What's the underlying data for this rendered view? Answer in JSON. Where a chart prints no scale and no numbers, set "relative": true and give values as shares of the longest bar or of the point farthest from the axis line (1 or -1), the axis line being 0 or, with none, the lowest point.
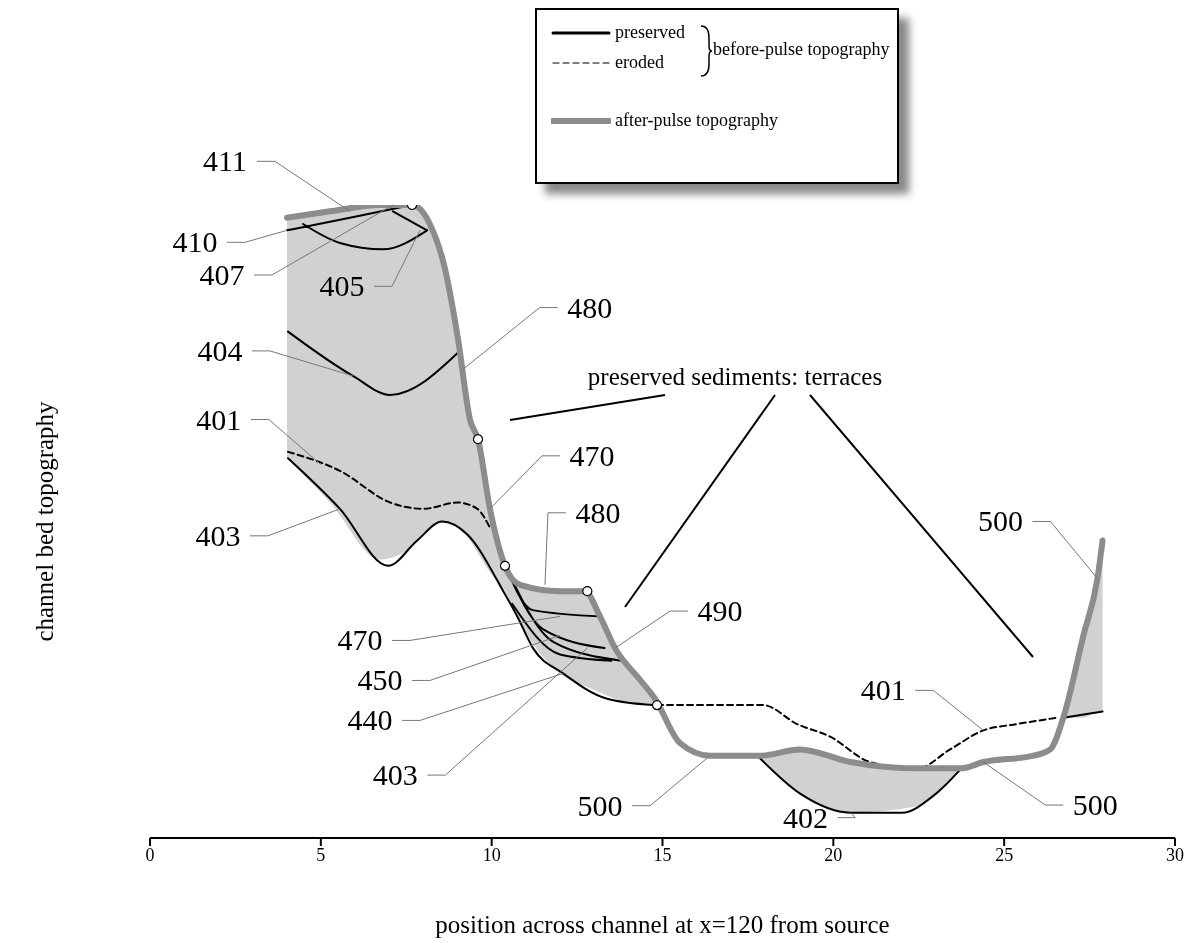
{
  "chart_data": {
    "type": "line",
    "relative": true,
    "xlabel": "position across channel at x=120 from source",
    "ylabel": "channel bed topography",
    "xlim": [
      0,
      30
    ],
    "xticks": [
      0,
      5,
      10,
      15,
      20,
      25,
      30
    ],
    "legend": "top right",
    "series": [
      {
        "name": "preserved",
        "color": "#000000",
        "line_style": "solid",
        "x": [
          4.01,
          5.85,
          7.67,
          null,
          4.48,
          5.56,
          6.82,
          8.11,
          null,
          7.11,
          8.11,
          null,
          4.04,
          5.94,
          7.03,
          9.08,
          null,
          4.04,
          5.56,
          6.97,
          7.82,
          8.55,
          9.28,
          10.34,
          10.75,
          11.21,
          12.09,
          13.38,
          14.73,
          null,
          10.4,
          11.2,
          13.2,
          null,
          10.4,
          11.5,
          13.3,
          null,
          10.4,
          11.8,
          13.8,
          null,
          10.6,
          12.0,
          13.5,
          null,
          17.78,
          19.03,
          20.5,
          22.0,
          23.0,
          23.75,
          null,
          26.73,
          27.88
        ],
        "values": [
          0.96,
          0.98,
          1.0,
          null,
          0.97,
          0.94,
          0.93,
          0.96,
          null,
          0.99,
          0.96,
          null,
          0.8,
          0.73,
          0.7,
          0.77,
          null,
          0.6,
          0.52,
          0.43,
          0.47,
          0.5,
          0.48,
          0.39,
          0.35,
          0.3,
          0.26,
          0.22,
          0.21,
          null,
          0.43,
          0.36,
          0.35,
          null,
          0.43,
          0.33,
          0.3,
          null,
          0.43,
          0.31,
          0.28,
          null,
          0.37,
          0.29,
          0.28,
          null,
          0.13,
          0.07,
          0.04,
          0.04,
          0.07,
          0.11,
          null,
          0.19,
          0.2
        ]
      },
      {
        "name": "eroded",
        "color": "#000000",
        "line_style": "dashed",
        "x": [
          4.04,
          5.56,
          7.03,
          8.0,
          9.0,
          9.58,
          9.95,
          null,
          14.84,
          17.94,
          18.94,
          19.91,
          21.08,
          22.46,
          23.42,
          24.39,
          25.38,
          26.55
        ],
        "values": [
          0.61,
          0.58,
          0.53,
          0.52,
          0.53,
          0.52,
          0.49,
          null,
          0.21,
          0.21,
          0.18,
          0.16,
          0.12,
          0.11,
          0.14,
          0.17,
          0.18,
          0.19
        ]
      },
      {
        "name": "after-pulse topography",
        "color": "#8c8c8c",
        "line_style": "solid",
        "x": [
          4.01,
          5.27,
          6.73,
          7.67,
          8.19,
          8.63,
          9.01,
          9.37,
          9.6,
          9.95,
          10.39,
          10.83,
          12.0,
          12.73,
          13.17,
          13.61,
          14.34,
          14.78,
          15.51,
          16.39,
          17.85,
          19.02,
          20.5,
          22.46,
          23.75,
          24.39,
          25.86,
          26.35,
          26.73,
          27.32,
          27.73,
          27.88
        ],
        "values": [
          0.98,
          0.99,
          1.0,
          1.0,
          0.97,
          0.9,
          0.79,
          0.66,
          0.63,
          0.52,
          0.43,
          0.4,
          0.39,
          0.39,
          0.35,
          0.3,
          0.25,
          0.22,
          0.15,
          0.13,
          0.13,
          0.14,
          0.12,
          0.11,
          0.11,
          0.12,
          0.13,
          0.14,
          0.19,
          0.32,
          0.41,
          0.47
        ],
        "lower": [
          0.6,
          0.53,
          0.44,
          0.46,
          0.49,
          0.5,
          0.49,
          0.47,
          0.45,
          0.42,
          0.39,
          0.34,
          0.26,
          0.24,
          0.23,
          0.22,
          0.21,
          0.21,
          null,
          null,
          0.13,
          0.07,
          0.04,
          0.05,
          0.11,
          null,
          null,
          null,
          0.19,
          0.19,
          0.2,
          0.2
        ],
        "upper": [
          0.98,
          0.99,
          1.0,
          1.0,
          0.97,
          0.9,
          0.79,
          0.66,
          0.63,
          0.52,
          0.43,
          0.4,
          0.39,
          0.39,
          0.35,
          0.3,
          0.25,
          0.22,
          null,
          null,
          0.13,
          0.14,
          0.12,
          0.11,
          0.11,
          null,
          null,
          null,
          0.19,
          0.32,
          0.41,
          0.47
        ]
      },
      {
        "type": "scatter",
        "color": "#ffffff",
        "marker": "circle",
        "x": [
          7.67,
          9.6,
          10.39,
          12.8,
          14.84
        ],
        "values": [
          1.0,
          0.63,
          0.43,
          0.39,
          0.21
        ]
      }
    ],
    "annotations": [
      "preserved sediments: terraces",
      "before-pulse topography",
      {
        "text": "411",
        "x": 5.85,
        "y": 0.99
      },
      {
        "text": "410",
        "x": 4.01,
        "y": 0.96
      },
      {
        "text": "407",
        "x": 7.11,
        "y": 1.0
      },
      {
        "text": "405",
        "x": 7.9,
        "y": 0.96
      },
      {
        "text": "404",
        "x": 5.94,
        "y": 0.73
      },
      {
        "text": "401",
        "x": 5.0,
        "y": 0.59
      },
      {
        "text": "403",
        "x": 5.56,
        "y": 0.52
      },
      {
        "text": "480",
        "x": 9.15,
        "y": 0.74
      },
      {
        "text": "470",
        "x": 9.95,
        "y": 0.52
      },
      {
        "text": "480",
        "x": 11.56,
        "y": 0.4
      },
      {
        "text": "490",
        "x": 13.61,
        "y": 0.3
      },
      {
        "text": "470",
        "x": 12.0,
        "y": 0.35
      },
      {
        "text": "450",
        "x": 12.0,
        "y": 0.32
      },
      {
        "text": "440",
        "x": 12.09,
        "y": 0.26
      },
      {
        "text": "403",
        "x": 12.8,
        "y": 0.3
      },
      {
        "text": "500",
        "x": 16.39,
        "y": 0.13
      },
      {
        "text": "402",
        "x": 20.5,
        "y": 0.04
      },
      {
        "text": "401",
        "x": 24.39,
        "y": 0.17
      },
      {
        "text": "500",
        "x": 24.39,
        "y": 0.12
      },
      {
        "text": "500",
        "x": 27.73,
        "y": 0.41
      }
    ]
  }
}
